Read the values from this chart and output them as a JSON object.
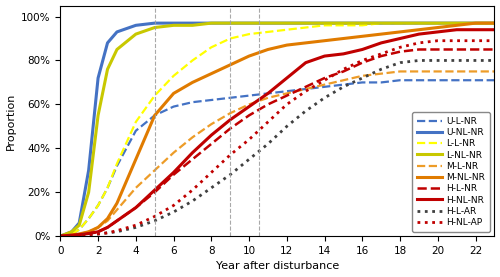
{
  "xlabel": "Year after disturbance",
  "ylabel": "Proportion",
  "xlim": [
    0,
    23
  ],
  "ylim": [
    0,
    1.05
  ],
  "xticks": [
    0,
    2,
    4,
    6,
    8,
    10,
    12,
    14,
    16,
    18,
    20,
    22
  ],
  "yticks": [
    0,
    0.2,
    0.4,
    0.6,
    0.8,
    1.0
  ],
  "vlines": [
    5,
    9,
    10.5
  ],
  "series": [
    {
      "label": "U-L-NR",
      "color": "#4472C4",
      "linestyle": "dashed",
      "linewidth": 1.6,
      "x": [
        0,
        0.3,
        0.6,
        1,
        1.5,
        2,
        2.5,
        3,
        4,
        5,
        6,
        7,
        8,
        9,
        10,
        11,
        12,
        13,
        14,
        15,
        16,
        17,
        18,
        19,
        20,
        21,
        22,
        23
      ],
      "y": [
        0,
        0.005,
        0.01,
        0.03,
        0.08,
        0.14,
        0.22,
        0.32,
        0.48,
        0.55,
        0.59,
        0.61,
        0.62,
        0.63,
        0.64,
        0.65,
        0.66,
        0.67,
        0.68,
        0.69,
        0.7,
        0.7,
        0.71,
        0.71,
        0.71,
        0.71,
        0.71,
        0.71
      ]
    },
    {
      "label": "U-NL-NR",
      "color": "#4472C4",
      "linestyle": "solid",
      "linewidth": 2.2,
      "x": [
        0,
        0.3,
        0.6,
        1,
        1.5,
        2,
        2.5,
        3,
        4,
        5,
        6,
        7,
        8,
        9,
        10,
        11,
        12,
        13,
        14,
        15,
        16,
        17,
        18,
        19,
        20,
        21,
        22,
        23
      ],
      "y": [
        0,
        0.01,
        0.02,
        0.06,
        0.3,
        0.72,
        0.88,
        0.93,
        0.96,
        0.97,
        0.97,
        0.97,
        0.97,
        0.97,
        0.97,
        0.97,
        0.97,
        0.97,
        0.97,
        0.97,
        0.97,
        0.97,
        0.97,
        0.97,
        0.97,
        0.97,
        0.97,
        0.97
      ]
    },
    {
      "label": "L-L-NR",
      "color": "#FFFF00",
      "linestyle": "dashed",
      "linewidth": 1.6,
      "x": [
        0,
        0.3,
        0.6,
        1,
        1.5,
        2,
        2.5,
        3,
        4,
        5,
        6,
        7,
        8,
        9,
        10,
        11,
        12,
        13,
        14,
        15,
        16,
        17,
        18,
        19,
        20,
        21,
        22,
        23
      ],
      "y": [
        0,
        0.005,
        0.01,
        0.03,
        0.08,
        0.14,
        0.22,
        0.33,
        0.52,
        0.64,
        0.73,
        0.8,
        0.86,
        0.9,
        0.92,
        0.93,
        0.94,
        0.95,
        0.96,
        0.96,
        0.96,
        0.97,
        0.97,
        0.97,
        0.97,
        0.97,
        0.97,
        0.97
      ]
    },
    {
      "label": "L-NL-NR",
      "color": "#C8C800",
      "linestyle": "solid",
      "linewidth": 2.2,
      "x": [
        0,
        0.3,
        0.6,
        1,
        1.5,
        2,
        2.5,
        3,
        4,
        5,
        6,
        7,
        8,
        9,
        10,
        11,
        12,
        13,
        14,
        15,
        16,
        17,
        18,
        19,
        20,
        21,
        22,
        23
      ],
      "y": [
        0,
        0.01,
        0.02,
        0.05,
        0.2,
        0.55,
        0.76,
        0.85,
        0.92,
        0.95,
        0.96,
        0.96,
        0.97,
        0.97,
        0.97,
        0.97,
        0.97,
        0.97,
        0.97,
        0.97,
        0.97,
        0.97,
        0.97,
        0.97,
        0.97,
        0.97,
        0.97,
        0.97
      ]
    },
    {
      "label": "M-L-NR",
      "color": "#ED9C28",
      "linestyle": "dashed",
      "linewidth": 1.6,
      "x": [
        0,
        0.3,
        0.6,
        1,
        1.5,
        2,
        2.5,
        3,
        4,
        5,
        6,
        7,
        8,
        9,
        10,
        11,
        12,
        13,
        14,
        15,
        16,
        17,
        18,
        19,
        20,
        21,
        22,
        23
      ],
      "y": [
        0,
        0.003,
        0.005,
        0.01,
        0.02,
        0.04,
        0.07,
        0.12,
        0.22,
        0.3,
        0.38,
        0.45,
        0.51,
        0.56,
        0.6,
        0.63,
        0.65,
        0.67,
        0.69,
        0.71,
        0.73,
        0.74,
        0.75,
        0.75,
        0.75,
        0.75,
        0.75,
        0.75
      ]
    },
    {
      "label": "M-NL-NR",
      "color": "#E07B00",
      "linestyle": "solid",
      "linewidth": 2.2,
      "x": [
        0,
        0.3,
        0.6,
        1,
        1.5,
        2,
        2.5,
        3,
        4,
        5,
        6,
        7,
        8,
        9,
        10,
        11,
        12,
        13,
        14,
        15,
        16,
        17,
        18,
        19,
        20,
        21,
        22,
        23
      ],
      "y": [
        0,
        0.003,
        0.006,
        0.01,
        0.02,
        0.04,
        0.08,
        0.15,
        0.35,
        0.55,
        0.65,
        0.7,
        0.74,
        0.78,
        0.82,
        0.85,
        0.87,
        0.88,
        0.89,
        0.9,
        0.91,
        0.92,
        0.93,
        0.94,
        0.95,
        0.96,
        0.97,
        0.97
      ]
    },
    {
      "label": "H-L-NR",
      "color": "#C00000",
      "linestyle": "dashed",
      "linewidth": 1.8,
      "x": [
        0,
        0.3,
        0.6,
        1,
        1.5,
        2,
        2.5,
        3,
        4,
        5,
        6,
        7,
        8,
        9,
        10,
        11,
        12,
        13,
        14,
        15,
        16,
        17,
        18,
        19,
        20,
        21,
        22,
        23
      ],
      "y": [
        0,
        0.002,
        0.004,
        0.007,
        0.012,
        0.02,
        0.04,
        0.07,
        0.13,
        0.2,
        0.28,
        0.35,
        0.42,
        0.49,
        0.55,
        0.6,
        0.64,
        0.68,
        0.72,
        0.75,
        0.79,
        0.82,
        0.84,
        0.85,
        0.85,
        0.85,
        0.85,
        0.85
      ]
    },
    {
      "label": "H-NL-NR",
      "color": "#C00000",
      "linestyle": "solid",
      "linewidth": 2.2,
      "x": [
        0,
        0.3,
        0.6,
        1,
        1.5,
        2,
        2.5,
        3,
        4,
        5,
        6,
        7,
        8,
        9,
        10,
        11,
        12,
        13,
        14,
        15,
        16,
        17,
        18,
        19,
        20,
        21,
        22,
        23
      ],
      "y": [
        0,
        0.002,
        0.004,
        0.007,
        0.012,
        0.02,
        0.04,
        0.07,
        0.13,
        0.21,
        0.29,
        0.38,
        0.46,
        0.53,
        0.59,
        0.65,
        0.72,
        0.79,
        0.82,
        0.83,
        0.85,
        0.88,
        0.9,
        0.92,
        0.93,
        0.94,
        0.94,
        0.94
      ]
    },
    {
      "label": "H-L-AR",
      "color": "#404040",
      "linestyle": "dotted",
      "linewidth": 2.0,
      "x": [
        0,
        0.3,
        0.6,
        1,
        1.5,
        2,
        2.5,
        3,
        4,
        5,
        6,
        7,
        8,
        9,
        10,
        11,
        12,
        13,
        14,
        15,
        16,
        17,
        18,
        19,
        20,
        21,
        22,
        23
      ],
      "y": [
        0,
        0.001,
        0.002,
        0.004,
        0.007,
        0.01,
        0.015,
        0.02,
        0.04,
        0.07,
        0.11,
        0.16,
        0.22,
        0.28,
        0.35,
        0.42,
        0.5,
        0.57,
        0.63,
        0.68,
        0.72,
        0.76,
        0.79,
        0.8,
        0.8,
        0.8,
        0.8,
        0.8
      ]
    },
    {
      "label": "H-NL-AP",
      "color": "#C00000",
      "linestyle": "dotted",
      "linewidth": 2.0,
      "x": [
        0,
        0.3,
        0.6,
        1,
        1.5,
        2,
        2.5,
        3,
        4,
        5,
        6,
        7,
        8,
        9,
        10,
        11,
        12,
        13,
        14,
        15,
        16,
        17,
        18,
        19,
        20,
        21,
        22,
        23
      ],
      "y": [
        0,
        0.001,
        0.002,
        0.004,
        0.007,
        0.01,
        0.015,
        0.025,
        0.05,
        0.09,
        0.14,
        0.21,
        0.29,
        0.37,
        0.44,
        0.52,
        0.6,
        0.66,
        0.71,
        0.76,
        0.8,
        0.83,
        0.86,
        0.88,
        0.89,
        0.89,
        0.89,
        0.89
      ]
    }
  ],
  "legend_loc": "lower right",
  "figsize": [
    5.0,
    2.77
  ],
  "dpi": 100
}
